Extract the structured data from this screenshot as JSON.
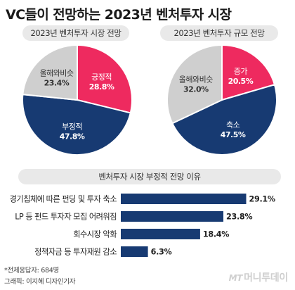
{
  "title": "VC들이 전망하는 2023년 벤처투자 시장",
  "colors": {
    "pink": "#ee2a5f",
    "navy": "#173a72",
    "gray": "#cfcfcf",
    "bar": "#173a72"
  },
  "chart_data": [
    {
      "type": "pie",
      "title": "2023년 벤처투자 시장 전망",
      "slices": [
        {
          "label": "긍정적",
          "value": 28.8,
          "display": "28.8%",
          "color": "#ee2a5f",
          "text_color": "#ffffff"
        },
        {
          "label": "부정적",
          "value": 47.8,
          "display": "47.8%",
          "color": "#173a72",
          "text_color": "#ffffff"
        },
        {
          "label": "올해와비슷",
          "value": 23.4,
          "display": "23.4%",
          "color": "#cfcfcf",
          "text_color": "#333333"
        }
      ]
    },
    {
      "type": "pie",
      "title": "2023년 벤처투자 규모 전망",
      "slices": [
        {
          "label": "증가",
          "value": 20.5,
          "display": "20.5%",
          "color": "#ee2a5f",
          "text_color": "#ffffff"
        },
        {
          "label": "축소",
          "value": 47.5,
          "display": "47.5%",
          "color": "#173a72",
          "text_color": "#ffffff"
        },
        {
          "label": "올해와비슷",
          "value": 32.0,
          "display": "32.0%",
          "color": "#cfcfcf",
          "text_color": "#333333"
        }
      ]
    },
    {
      "type": "bar",
      "orientation": "horizontal",
      "title": "벤처투자 시장 부정적 전망 이유",
      "categories": [
        "경기침체에 따른 펀딩 및 투자 축소",
        "LP 등 펀드 투자자 모집 어려워짐",
        "회수시장 악화",
        "정책자금 등 투자재원 감소"
      ],
      "values": [
        29.1,
        23.8,
        18.4,
        6.3
      ],
      "value_labels": [
        "29.1%",
        "23.8%",
        "18.4%",
        "6.3%"
      ],
      "xlim": [
        0,
        30
      ]
    }
  ],
  "footnotes": {
    "respondents": "*전체응답자: 684명",
    "credit": "그래픽: 이지혜 디자인기자"
  },
  "logo": {
    "mark": "MT",
    "text": "머니투데이"
  }
}
